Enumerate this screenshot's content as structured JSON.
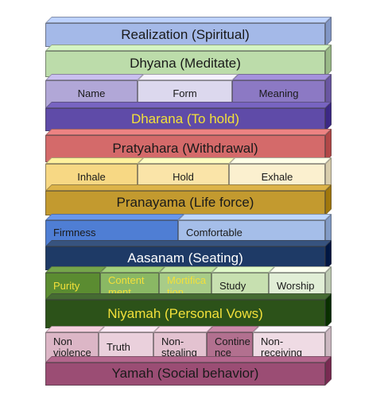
{
  "rows": [
    {
      "kind": "layer",
      "cells": [
        {
          "name": "realization-layer",
          "label": "Realization (Spiritual)",
          "fill": "#a4b9e8",
          "color": "#1a1a1a",
          "size": "lg",
          "align": "c"
        }
      ]
    },
    {
      "kind": "layer",
      "cells": [
        {
          "name": "dhyana-layer",
          "label": "Dhyana (Meditate)",
          "fill": "#bcdcaa",
          "color": "#1a1a1a",
          "size": "lg",
          "align": "c"
        }
      ]
    },
    {
      "kind": "sub",
      "cells": [
        {
          "name": "name-block",
          "label": "Name",
          "fill": "#b1a7d7",
          "color": "#1a1a1a",
          "size": "sm",
          "align": "c"
        },
        {
          "name": "form-block",
          "label": "Form",
          "fill": "#dcd8ee",
          "color": "#1a1a1a",
          "size": "sm",
          "align": "c"
        },
        {
          "name": "meaning-block",
          "label": "Meaning",
          "fill": "#8c79c4",
          "color": "#1a1a1a",
          "size": "sm",
          "align": "c"
        }
      ]
    },
    {
      "kind": "layer",
      "cells": [
        {
          "name": "dharana-layer",
          "label": "Dharana (To hold)",
          "fill": "#5f4ba8",
          "color": "#f2e03a",
          "size": "lg",
          "align": "c"
        }
      ]
    },
    {
      "kind": "layer",
      "cells": [
        {
          "name": "pratyahara-layer",
          "label": "Pratyahara (Withdrawal)",
          "fill": "#d46a6a",
          "color": "#1a1a1a",
          "size": "lg",
          "align": "c"
        }
      ]
    },
    {
      "kind": "sub",
      "cells": [
        {
          "name": "inhale-block",
          "label": "Inhale",
          "fill": "#f7d884",
          "color": "#1a1a1a",
          "size": "sm",
          "align": "c"
        },
        {
          "name": "hold-block",
          "label": "Hold",
          "fill": "#fae4a8",
          "color": "#1a1a1a",
          "size": "sm",
          "align": "c"
        },
        {
          "name": "exhale-block",
          "label": "Exhale",
          "fill": "#fbf0cf",
          "color": "#1a1a1a",
          "size": "sm",
          "align": "c"
        }
      ]
    },
    {
      "kind": "layer",
      "cells": [
        {
          "name": "pranayama-layer",
          "label": "Pranayama (Life force)",
          "fill": "#c39a2f",
          "color": "#1a1a1a",
          "size": "lg",
          "align": "c"
        }
      ]
    },
    {
      "kind": "sub",
      "cells": [
        {
          "name": "firmness-block",
          "label": "Firmness",
          "fill": "#4f7ed4",
          "color": "#1a1a1a",
          "size": "sm",
          "align": "l"
        },
        {
          "name": "comfortable-block",
          "label": "Comfortable",
          "fill": "#a5bee9",
          "color": "#1a1a1a",
          "size": "sm",
          "align": "l"
        }
      ]
    },
    {
      "kind": "layer",
      "cells": [
        {
          "name": "aasanam-layer",
          "label": "Aasanam (Seating)",
          "fill": "#1e3a66",
          "color": "#ffffff",
          "size": "lg",
          "align": "c"
        }
      ]
    },
    {
      "kind": "sub",
      "cells": [
        {
          "name": "purity-block",
          "label": "Purity",
          "fill": "#5b8c31",
          "color": "#f2e03a",
          "size": "sm",
          "align": "l"
        },
        {
          "name": "contentment-block",
          "label": "Content ment",
          "fill": "#8ab864",
          "color": "#f2e03a",
          "size": "sm",
          "align": "l"
        },
        {
          "name": "mortification-block",
          "label": "Mortifica tion",
          "fill": "#a8cc88",
          "color": "#f2e03a",
          "size": "sm",
          "align": "l"
        },
        {
          "name": "study-block",
          "label": "Study",
          "fill": "#c7e0b0",
          "color": "#1a1a1a",
          "size": "sm",
          "align": "l"
        },
        {
          "name": "worship-block",
          "label": "Worship",
          "fill": "#e1eed6",
          "color": "#1a1a1a",
          "size": "sm",
          "align": "l"
        }
      ]
    },
    {
      "kind": "layer",
      "cells": [
        {
          "name": "niyamah-layer",
          "label": "Niyamah (Personal Vows)",
          "fill": "#2c5219",
          "color": "#f2e03a",
          "size": "lg",
          "align": "c"
        }
      ]
    },
    {
      "kind": "sub",
      "cells": [
        {
          "name": "nonviolence-block",
          "label": "Non violence",
          "fill": "#dcb6c6",
          "color": "#1a1a1a",
          "size": "sm",
          "align": "l"
        },
        {
          "name": "truth-block",
          "label": "Truth",
          "fill": "#ead0dc",
          "color": "#1a1a1a",
          "size": "sm",
          "align": "l"
        },
        {
          "name": "nonstealing-block",
          "label": "Non- stealing",
          "fill": "#e3c2d0",
          "color": "#1a1a1a",
          "size": "sm",
          "align": "l"
        },
        {
          "name": "continence-block",
          "label": "Contine nce",
          "fill": "#b2708f",
          "color": "#1a1a1a",
          "size": "sm",
          "align": "l"
        },
        {
          "name": "nonreceiving-block",
          "label": "Non- receiving",
          "fill": "#efdbe4",
          "color": "#1a1a1a",
          "size": "sm",
          "align": "l"
        }
      ]
    },
    {
      "kind": "layer",
      "cells": [
        {
          "name": "yamah-layer",
          "label": "Yamah (Social behavior)",
          "fill": "#9b4d74",
          "color": "#1a1a1a",
          "size": "lg",
          "align": "c"
        }
      ]
    }
  ]
}
